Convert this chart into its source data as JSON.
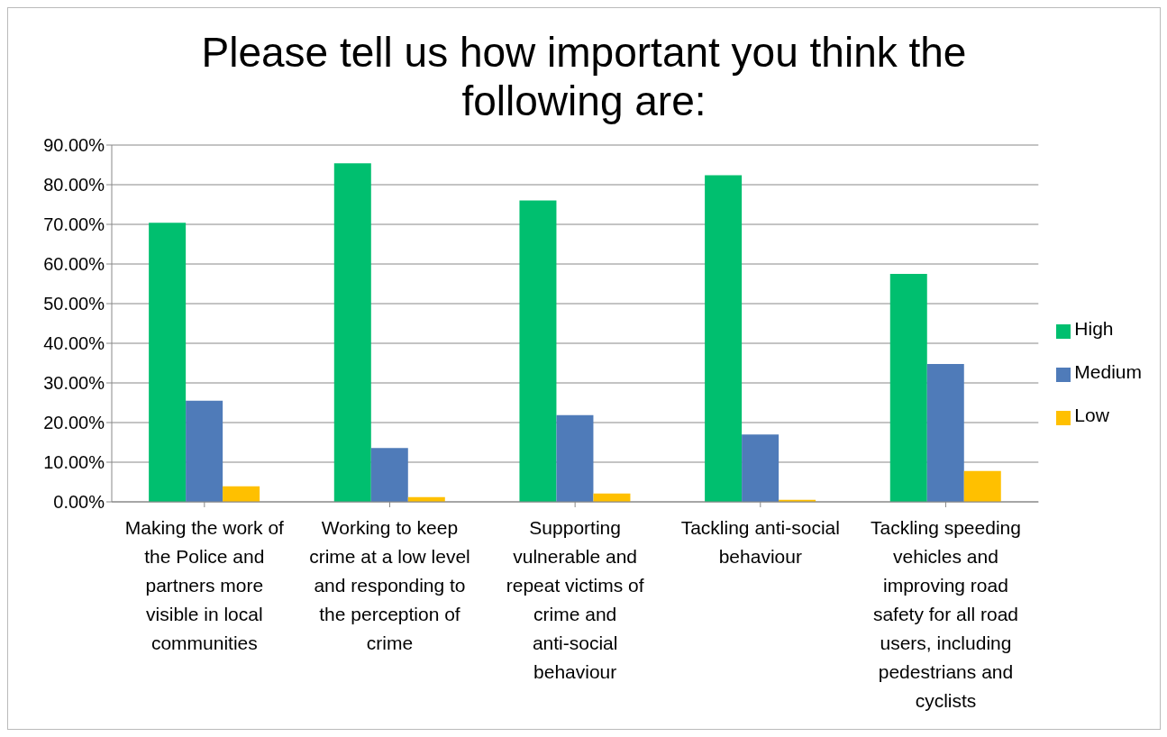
{
  "chart_data": {
    "type": "bar",
    "title": "Please tell us how important you think the following are:",
    "categories": [
      "Making the work of the Police and partners more visible in local communities",
      "Working to keep crime at a low level and responding to the perception of crime",
      "Supporting vulnerable and repeat victims of crime and anti-social behaviour",
      "Tackling anti-social behaviour",
      "Tackling speeding vehicles and improving road safety for all road users, including pedestrians and cyclists"
    ],
    "series": [
      {
        "name": "High",
        "color": "#00bf6f",
        "values": [
          70.4,
          85.4,
          76.0,
          82.4,
          57.5
        ]
      },
      {
        "name": "Medium",
        "color": "#4f7bb9",
        "values": [
          25.5,
          13.6,
          21.9,
          17.0,
          34.8
        ]
      },
      {
        "name": "Low",
        "color": "#ffc000",
        "values": [
          3.9,
          1.2,
          2.1,
          0.5,
          7.8
        ]
      }
    ],
    "ylim": [
      0,
      90
    ],
    "yticks": [
      {
        "value": 0,
        "label": "0.00%"
      },
      {
        "value": 10,
        "label": "10.00%"
      },
      {
        "value": 20,
        "label": "20.00%"
      },
      {
        "value": 30,
        "label": "30.00%"
      },
      {
        "value": 40,
        "label": "40.00%"
      },
      {
        "value": 50,
        "label": "50.00%"
      },
      {
        "value": 60,
        "label": "60.00%"
      },
      {
        "value": 70,
        "label": "70.00%"
      },
      {
        "value": 80,
        "label": "80.00%"
      },
      {
        "value": 90,
        "label": "90.00%"
      }
    ],
    "grid": "y",
    "legend": "right"
  }
}
